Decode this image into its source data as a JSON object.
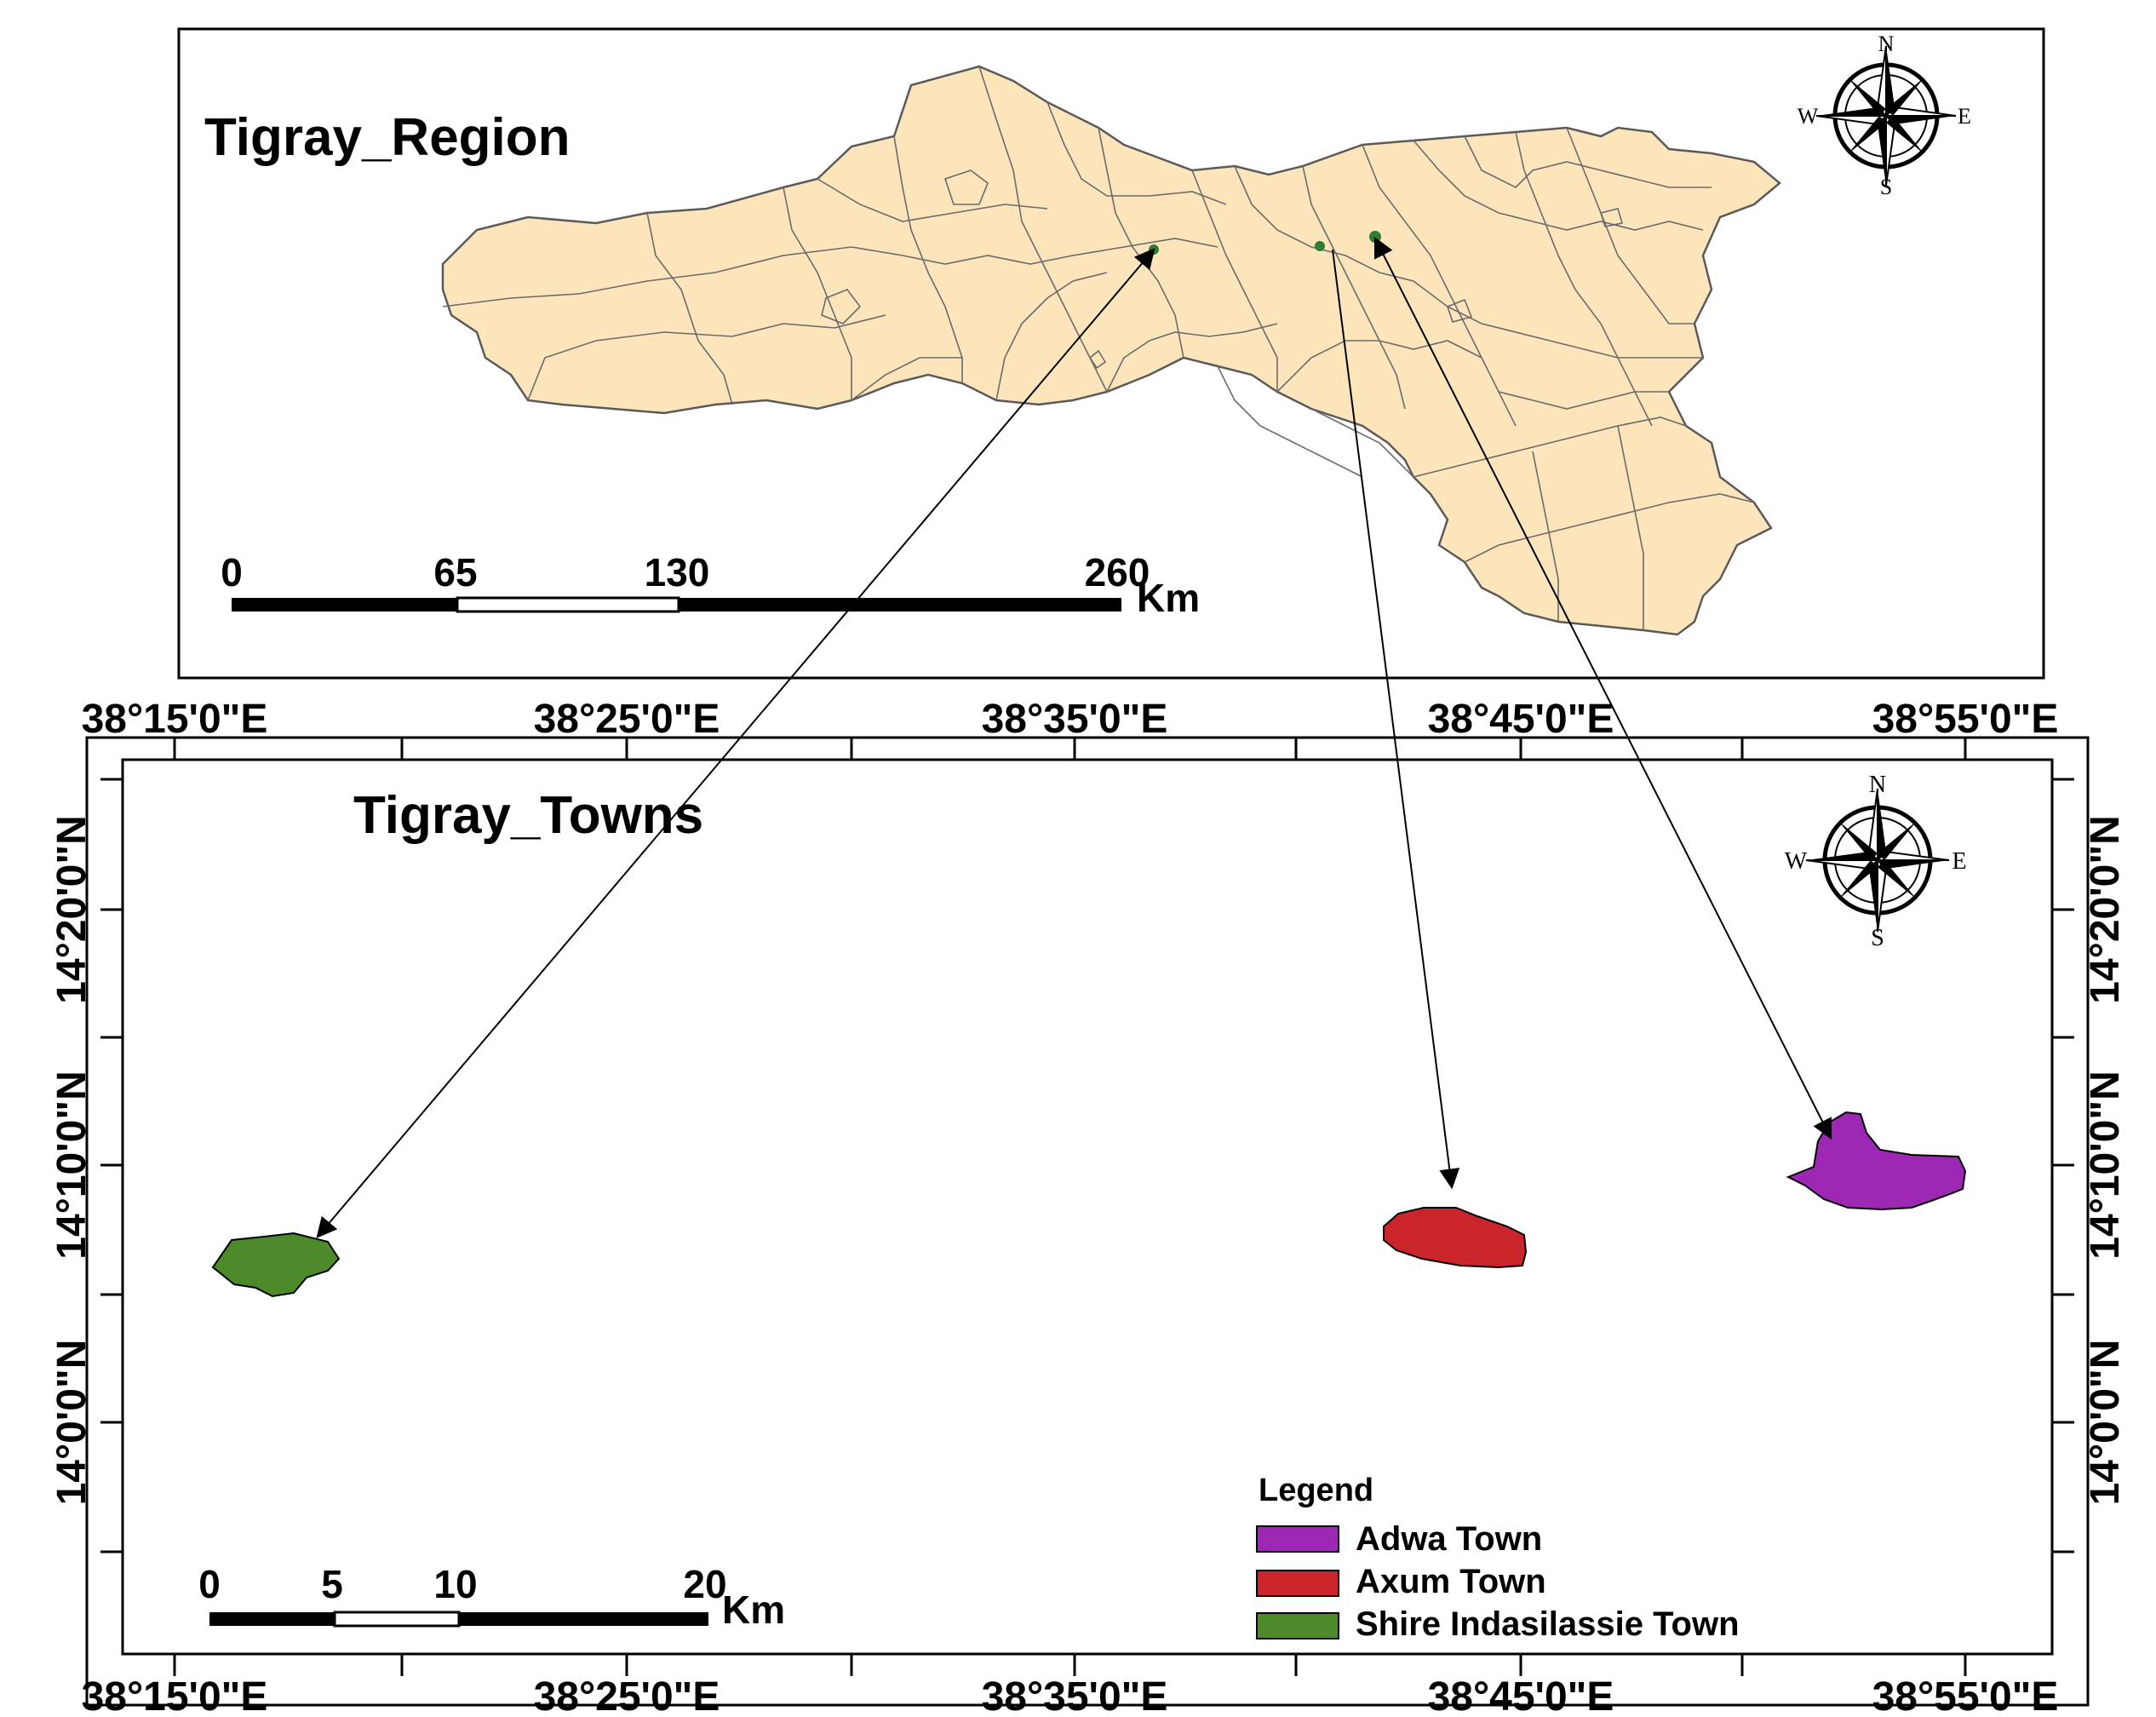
{
  "region_map": {
    "title": "Tigray_Region",
    "scalebar": {
      "ticks": [
        "0",
        "65",
        "130",
        "260"
      ],
      "unit": "Km"
    },
    "compass": {
      "n": "N",
      "s": "S",
      "e": "E",
      "w": "W"
    }
  },
  "towns_map": {
    "title": "Tigray_Towns",
    "scalebar": {
      "ticks": [
        "0",
        "5",
        "10",
        "20"
      ],
      "unit": "Km"
    },
    "compass": {
      "n": "N",
      "s": "S",
      "e": "E",
      "w": "W"
    },
    "lon_labels": [
      "38°15'0\"E",
      "38°25'0\"E",
      "38°35'0\"E",
      "38°45'0\"E",
      "38°55'0\"E"
    ],
    "lat_labels": [
      "14°20'0\"N",
      "14°10'0\"N",
      "14°0'0\"N"
    ],
    "legend": {
      "title": "Legend",
      "items": [
        {
          "label": "Adwa Town",
          "color": "#9b27b3"
        },
        {
          "label": "Axum Town",
          "color": "#c9252b"
        },
        {
          "label": "Shire Indasilassie Town",
          "color": "#4c8a2a"
        }
      ]
    }
  },
  "colors": {
    "region_fill": "#fce5bb",
    "boundary": "#5a5a5a"
  }
}
